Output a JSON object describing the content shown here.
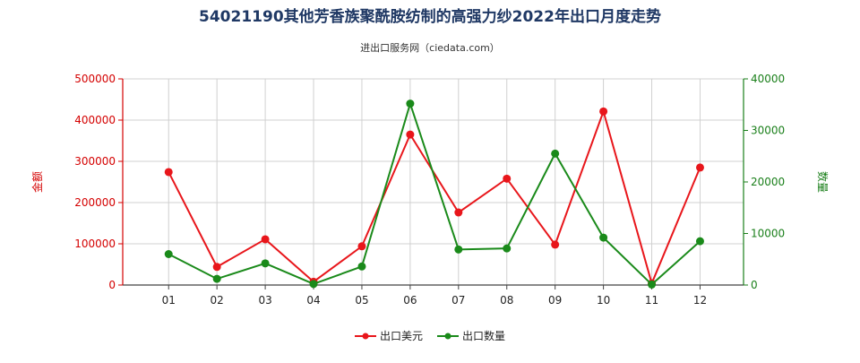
{
  "chart_data": {
    "type": "line",
    "title": "54021190其他芳香族聚酰胺纺制的高强力纱2022年出口月度走势",
    "subtitle": "进出口服务网（ciedata.com）",
    "categories": [
      "01",
      "02",
      "03",
      "04",
      "05",
      "06",
      "07",
      "08",
      "09",
      "10",
      "11",
      "12"
    ],
    "y_left": {
      "label": "金额",
      "ylim": [
        0,
        500000
      ],
      "ticks": [
        "0",
        "100000",
        "200000",
        "300000",
        "400000",
        "500000"
      ]
    },
    "y_right": {
      "label": "数量",
      "ylim": [
        0,
        40000
      ],
      "ticks": [
        "0",
        "10000",
        "20000",
        "30000",
        "40000"
      ]
    },
    "series": [
      {
        "name": "出口美元",
        "axis": "left",
        "color": "#e8161b",
        "values": [
          274000,
          44000,
          111000,
          8000,
          94000,
          365000,
          176000,
          258000,
          98000,
          421000,
          4000,
          285000
        ]
      },
      {
        "name": "出口数量",
        "axis": "right",
        "color": "#1a8a1a",
        "values": [
          6000,
          1200,
          4200,
          200,
          3600,
          35200,
          6900,
          7100,
          25500,
          9200,
          100,
          8500
        ]
      }
    ],
    "grid": true,
    "legend_position": "bottom"
  }
}
